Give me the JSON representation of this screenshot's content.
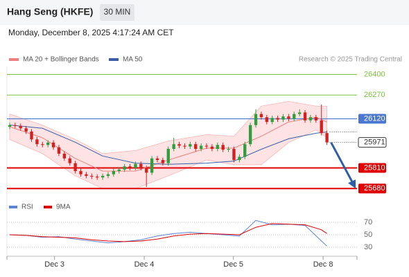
{
  "header": {
    "title": "Hang Seng (HKFE)",
    "interval": "30 MIN",
    "date": "Monday, December 8, 2025 4:17:24 AM CET"
  },
  "chart_data": [
    {
      "type": "candlestick",
      "legend": [
        {
          "name": "MA 20 + Bollinger Bands",
          "color": "#f08080"
        },
        {
          "name": "MA 50",
          "color": "#3a5ea8"
        }
      ],
      "credit": "Research © 2025 Trading Central",
      "xlim": [
        -0.5,
        63.5
      ],
      "ylim": [
        25620,
        26450
      ],
      "xticks": [
        {
          "value": 8.2,
          "label": "Dec 3"
        },
        {
          "value": 24.6,
          "label": "Dec 4"
        },
        {
          "value": 40.9,
          "label": "Dec 5"
        },
        {
          "value": 57.3,
          "label": "Dec 8"
        }
      ],
      "levels": [
        {
          "value": 26400,
          "color": "#7cbf3f",
          "style": "plain"
        },
        {
          "value": 26270,
          "color": "#7cbf3f",
          "style": "plain"
        },
        {
          "value": 26120,
          "color": "#4a78d0",
          "style": "box"
        },
        {
          "value": 25810,
          "color": "#e00000",
          "style": "box"
        },
        {
          "value": 25680,
          "color": "#e00000",
          "style": "box"
        }
      ],
      "current": 25971,
      "up_color": "#2e9e3e",
      "down_color": "#d42020",
      "open": [
        26070,
        26080,
        26075,
        26060,
        26040,
        25990,
        25960,
        25955,
        25970,
        25940,
        25900,
        25870,
        25840,
        25790,
        25770,
        25760,
        25755,
        25750,
        25760,
        25770,
        25790,
        25800,
        25820,
        25810,
        25835,
        25810,
        25780,
        25870,
        25860,
        25840,
        25930,
        25960,
        25950,
        25945,
        25960,
        25930,
        25950,
        25945,
        25930,
        25955,
        25925,
        25930,
        25860,
        25880,
        25960,
        26080,
        26150,
        26130,
        26100,
        26125,
        26115,
        26135,
        26120,
        26150,
        26160,
        26110,
        26130,
        26110,
        26030
      ],
      "high": [
        26095,
        26095,
        26090,
        26075,
        26055,
        26005,
        25975,
        25985,
        25985,
        25955,
        25915,
        25885,
        25855,
        25805,
        25785,
        25775,
        25770,
        25775,
        25785,
        25805,
        25815,
        25835,
        25835,
        25850,
        25850,
        25825,
        25885,
        25885,
        25875,
        25945,
        26000,
        25975,
        25965,
        25975,
        25975,
        25965,
        25965,
        25960,
        25970,
        25970,
        25945,
        25945,
        25895,
        25975,
        26095,
        26180,
        26165,
        26145,
        26140,
        26140,
        26150,
        26150,
        26165,
        26180,
        26175,
        26145,
        26145,
        26210,
        26045
      ],
      "low": [
        26055,
        26060,
        26045,
        26025,
        25975,
        25945,
        25940,
        25940,
        25925,
        25885,
        25855,
        25825,
        25775,
        25755,
        25745,
        25740,
        25735,
        25735,
        25745,
        25755,
        25775,
        25785,
        25795,
        25795,
        25795,
        25690,
        25765,
        25845,
        25825,
        25825,
        25915,
        25935,
        25930,
        25930,
        25915,
        25915,
        25930,
        25915,
        25915,
        25910,
        25910,
        25845,
        25845,
        25865,
        25945,
        26065,
        26115,
        26085,
        26085,
        26100,
        26100,
        26105,
        26105,
        26135,
        26095,
        26095,
        26095,
        26015,
        25955
      ],
      "close": [
        26080,
        26075,
        26060,
        26040,
        25990,
        25960,
        25955,
        25970,
        25940,
        25900,
        25870,
        25840,
        25790,
        25770,
        25760,
        25755,
        25750,
        25760,
        25770,
        25790,
        25800,
        25820,
        25810,
        25835,
        25810,
        25780,
        25870,
        25860,
        25840,
        25930,
        25960,
        25950,
        25945,
        25960,
        25930,
        25950,
        25945,
        25930,
        25955,
        25925,
        25930,
        25860,
        25880,
        25960,
        26080,
        26150,
        26130,
        26100,
        26125,
        26115,
        26135,
        26120,
        26150,
        26160,
        26110,
        26130,
        26110,
        26030,
        25971
      ],
      "overlay_x": [
        0,
        6,
        12,
        17,
        23,
        29,
        36,
        41,
        46,
        51,
        56,
        58
      ],
      "bb_upper": [
        26150,
        26080,
        25990,
        25900,
        25920,
        25980,
        26020,
        26010,
        26200,
        26230,
        26200,
        26200
      ],
      "bb_lower": [
        25990,
        25900,
        25760,
        25680,
        25680,
        25760,
        25860,
        25830,
        25830,
        25970,
        26050,
        26000
      ],
      "ma20": [
        26070,
        26000,
        25870,
        25790,
        25790,
        25860,
        25935,
        25935,
        26010,
        26100,
        26130,
        26100
      ],
      "ma50": [
        26081,
        26060,
        25972,
        25885,
        25840,
        25833,
        25840,
        25853,
        25928,
        25994,
        26029,
        26037
      ]
    },
    {
      "type": "line",
      "ylim": [
        20,
        80
      ],
      "yticks": [
        70,
        50,
        30
      ],
      "x": [
        0,
        3,
        6,
        9,
        12,
        15,
        18,
        21,
        24,
        27,
        30,
        33,
        36,
        39,
        42,
        45,
        48,
        51,
        54,
        57,
        58
      ],
      "series": [
        {
          "name": "RSI",
          "color": "#5b84d6",
          "values": [
            50,
            49,
            46,
            47,
            43,
            40,
            37,
            39,
            42,
            48,
            52,
            54,
            52,
            50,
            48,
            73,
            66,
            67,
            65,
            40,
            32
          ]
        },
        {
          "name": "9MA",
          "color": "#e00000",
          "values": [
            50,
            49,
            47,
            46,
            45,
            42,
            40,
            39,
            40,
            43,
            48,
            51,
            52,
            51,
            50,
            62,
            68,
            67,
            66,
            58,
            52
          ]
        }
      ]
    }
  ]
}
